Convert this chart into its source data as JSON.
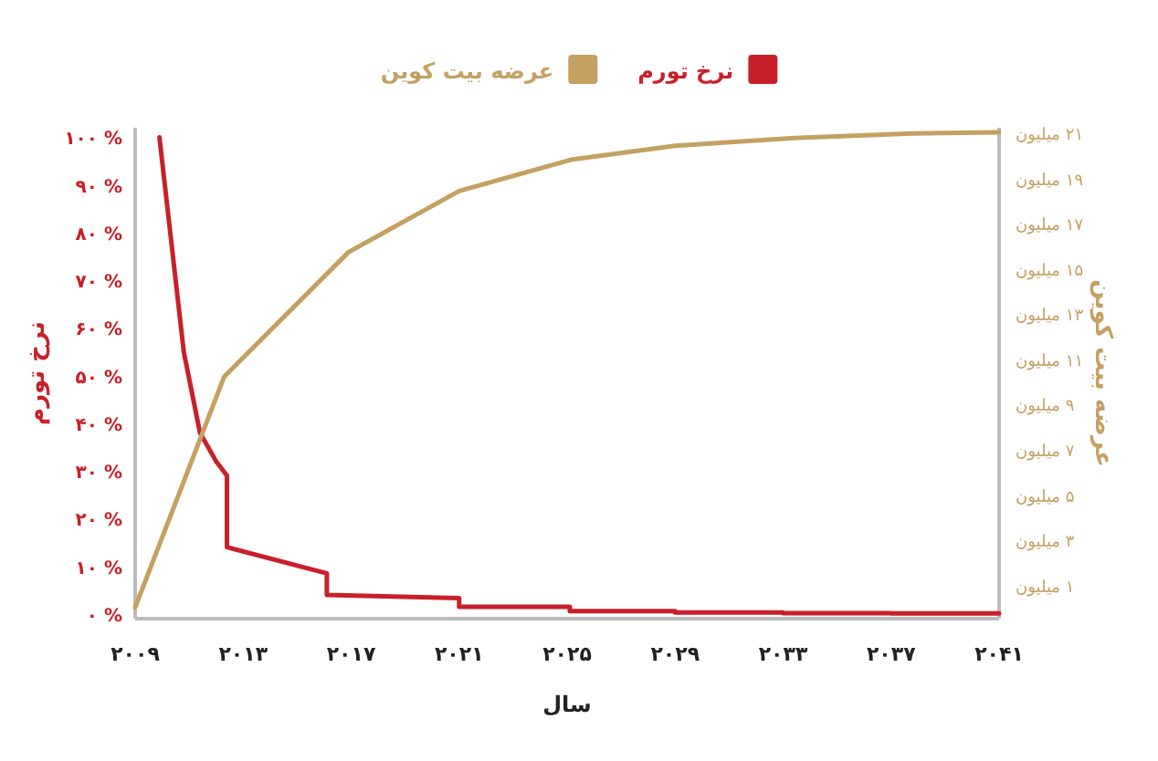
{
  "chart_data": {
    "type": "line",
    "xlabel": "سال",
    "ylabel": "نرخ تورم",
    "y2label": "عرضه بیت کوین",
    "legend": "top",
    "marker": "none",
    "line_style": "solid",
    "xlim": [
      2009,
      2041
    ],
    "xticks": [
      {
        "value": 2009,
        "label": "۲۰۰۹"
      },
      {
        "value": 2013,
        "label": "۲۰۱۳"
      },
      {
        "value": 2017,
        "label": "۲۰۱۷"
      },
      {
        "value": 2021,
        "label": "۲۰۲۱"
      },
      {
        "value": 2025,
        "label": "۲۰۲۵"
      },
      {
        "value": 2029,
        "label": "۲۰۲۹"
      },
      {
        "value": 2033,
        "label": "۲۰۳۳"
      },
      {
        "value": 2037,
        "label": "۲۰۳۷"
      },
      {
        "value": 2041,
        "label": "۲۰۴۱"
      }
    ],
    "ylim": [
      -1,
      102
    ],
    "yticks": [
      {
        "value": 0,
        "label": "۰ %"
      },
      {
        "value": 10,
        "label": "۱۰ %"
      },
      {
        "value": 20,
        "label": "۲۰ %"
      },
      {
        "value": 30,
        "label": "۳۰ %"
      },
      {
        "value": 40,
        "label": "۴۰ %"
      },
      {
        "value": 50,
        "label": "۵۰ %"
      },
      {
        "value": 60,
        "label": "۶۰ %"
      },
      {
        "value": 70,
        "label": "۷۰ %"
      },
      {
        "value": 80,
        "label": "۸۰ %"
      },
      {
        "value": 90,
        "label": "۹۰ %"
      },
      {
        "value": 100,
        "label": "۱۰۰ %"
      }
    ],
    "y2lim": [
      -0.5,
      21.2
    ],
    "y2ticks": [
      {
        "value": 1,
        "label": "۱ میلیون"
      },
      {
        "value": 3,
        "label": "۳ میلیون"
      },
      {
        "value": 5,
        "label": "۵ میلیون"
      },
      {
        "value": 7,
        "label": "۷ میلیون"
      },
      {
        "value": 9,
        "label": "۹ میلیون"
      },
      {
        "value": 11,
        "label": "۱۱ میلیون"
      },
      {
        "value": 13,
        "label": "۱۳ میلیون"
      },
      {
        "value": 15,
        "label": "۱۵ میلیون"
      },
      {
        "value": 17,
        "label": "۱۷ میلیون"
      },
      {
        "value": 19,
        "label": "۱۹ میلیون"
      },
      {
        "value": 21,
        "label": "۲۱ میلیون"
      }
    ],
    "series": [
      {
        "name": "نرخ تورم",
        "color": "#c8202a",
        "axis": "y",
        "x": [
          2009.9,
          2010.3,
          2010.8,
          2011.4,
          2012.0,
          2012.4,
          2012.4,
          2016.1,
          2016.1,
          2021.0,
          2021.0,
          2025.1,
          2025.1,
          2029,
          2029,
          2033,
          2033,
          2037,
          2037,
          2041
        ],
        "values": [
          100,
          80,
          55,
          38,
          32,
          29,
          14,
          8.5,
          4,
          3.3,
          1.5,
          1.5,
          0.6,
          0.6,
          0.3,
          0.3,
          0.15,
          0.15,
          0.1,
          0.1
        ]
      },
      {
        "name": "عرضه بیت کوین",
        "color": "#c4a062",
        "axis": "y2",
        "x": [
          2009,
          2012.3,
          2016.9,
          2021,
          2025.2,
          2029,
          2033.4,
          2037.8,
          2041
        ],
        "values": [
          0,
          10.2,
          15.7,
          18.4,
          19.8,
          20.4,
          20.75,
          20.95,
          21
        ]
      }
    ]
  }
}
